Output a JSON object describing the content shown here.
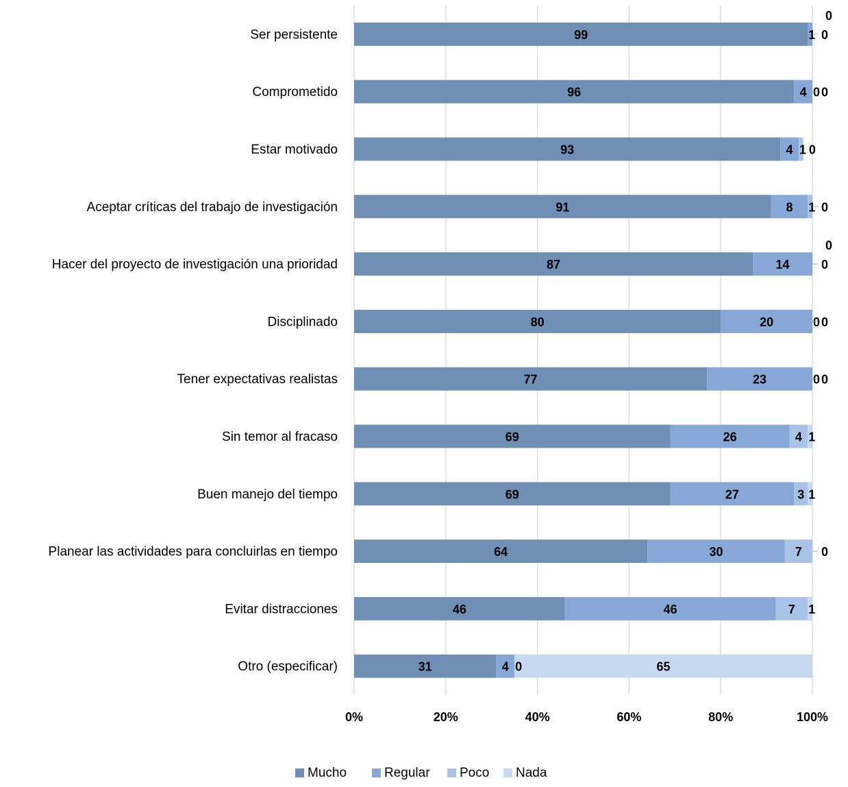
{
  "chart_data": {
    "type": "bar",
    "orientation": "horizontal",
    "stacked": "percent",
    "categories": [
      "Ser persistente",
      "Comprometido",
      "Estar motivado",
      "Aceptar críticas del trabajo de investigación",
      "Hacer del proyecto de investigación una prioridad",
      "Disciplinado",
      "Tener expectativas realistas",
      "Sin temor al fracaso",
      "Buen manejo del tiempo",
      "Planear las actividades para concluirlas en tiempo",
      "Evitar distracciones",
      "Otro (especificar)"
    ],
    "series": [
      {
        "name": "Mucho",
        "color": "#6f8fb4",
        "values": [
          99,
          96,
          93,
          91,
          87,
          80,
          77,
          69,
          69,
          64,
          46,
          31
        ]
      },
      {
        "name": "Regular",
        "color": "#87a8d6",
        "values": [
          1,
          4,
          4,
          8,
          14,
          20,
          23,
          26,
          27,
          30,
          46,
          4
        ]
      },
      {
        "name": "Poco",
        "color": "#a9c3e6",
        "values": [
          0,
          0,
          1,
          1,
          0,
          0,
          0,
          4,
          3,
          7,
          7,
          0
        ]
      },
      {
        "name": "Nada",
        "color": "#c8d8ee",
        "values": [
          0,
          0,
          0,
          0,
          0,
          0,
          0,
          1,
          1,
          0,
          1,
          65
        ]
      }
    ],
    "x_ticks": [
      "0%",
      "20%",
      "40%",
      "60%",
      "80%",
      "100%"
    ],
    "xlim": [
      0,
      100
    ],
    "grid": true,
    "legend": "bottom"
  }
}
